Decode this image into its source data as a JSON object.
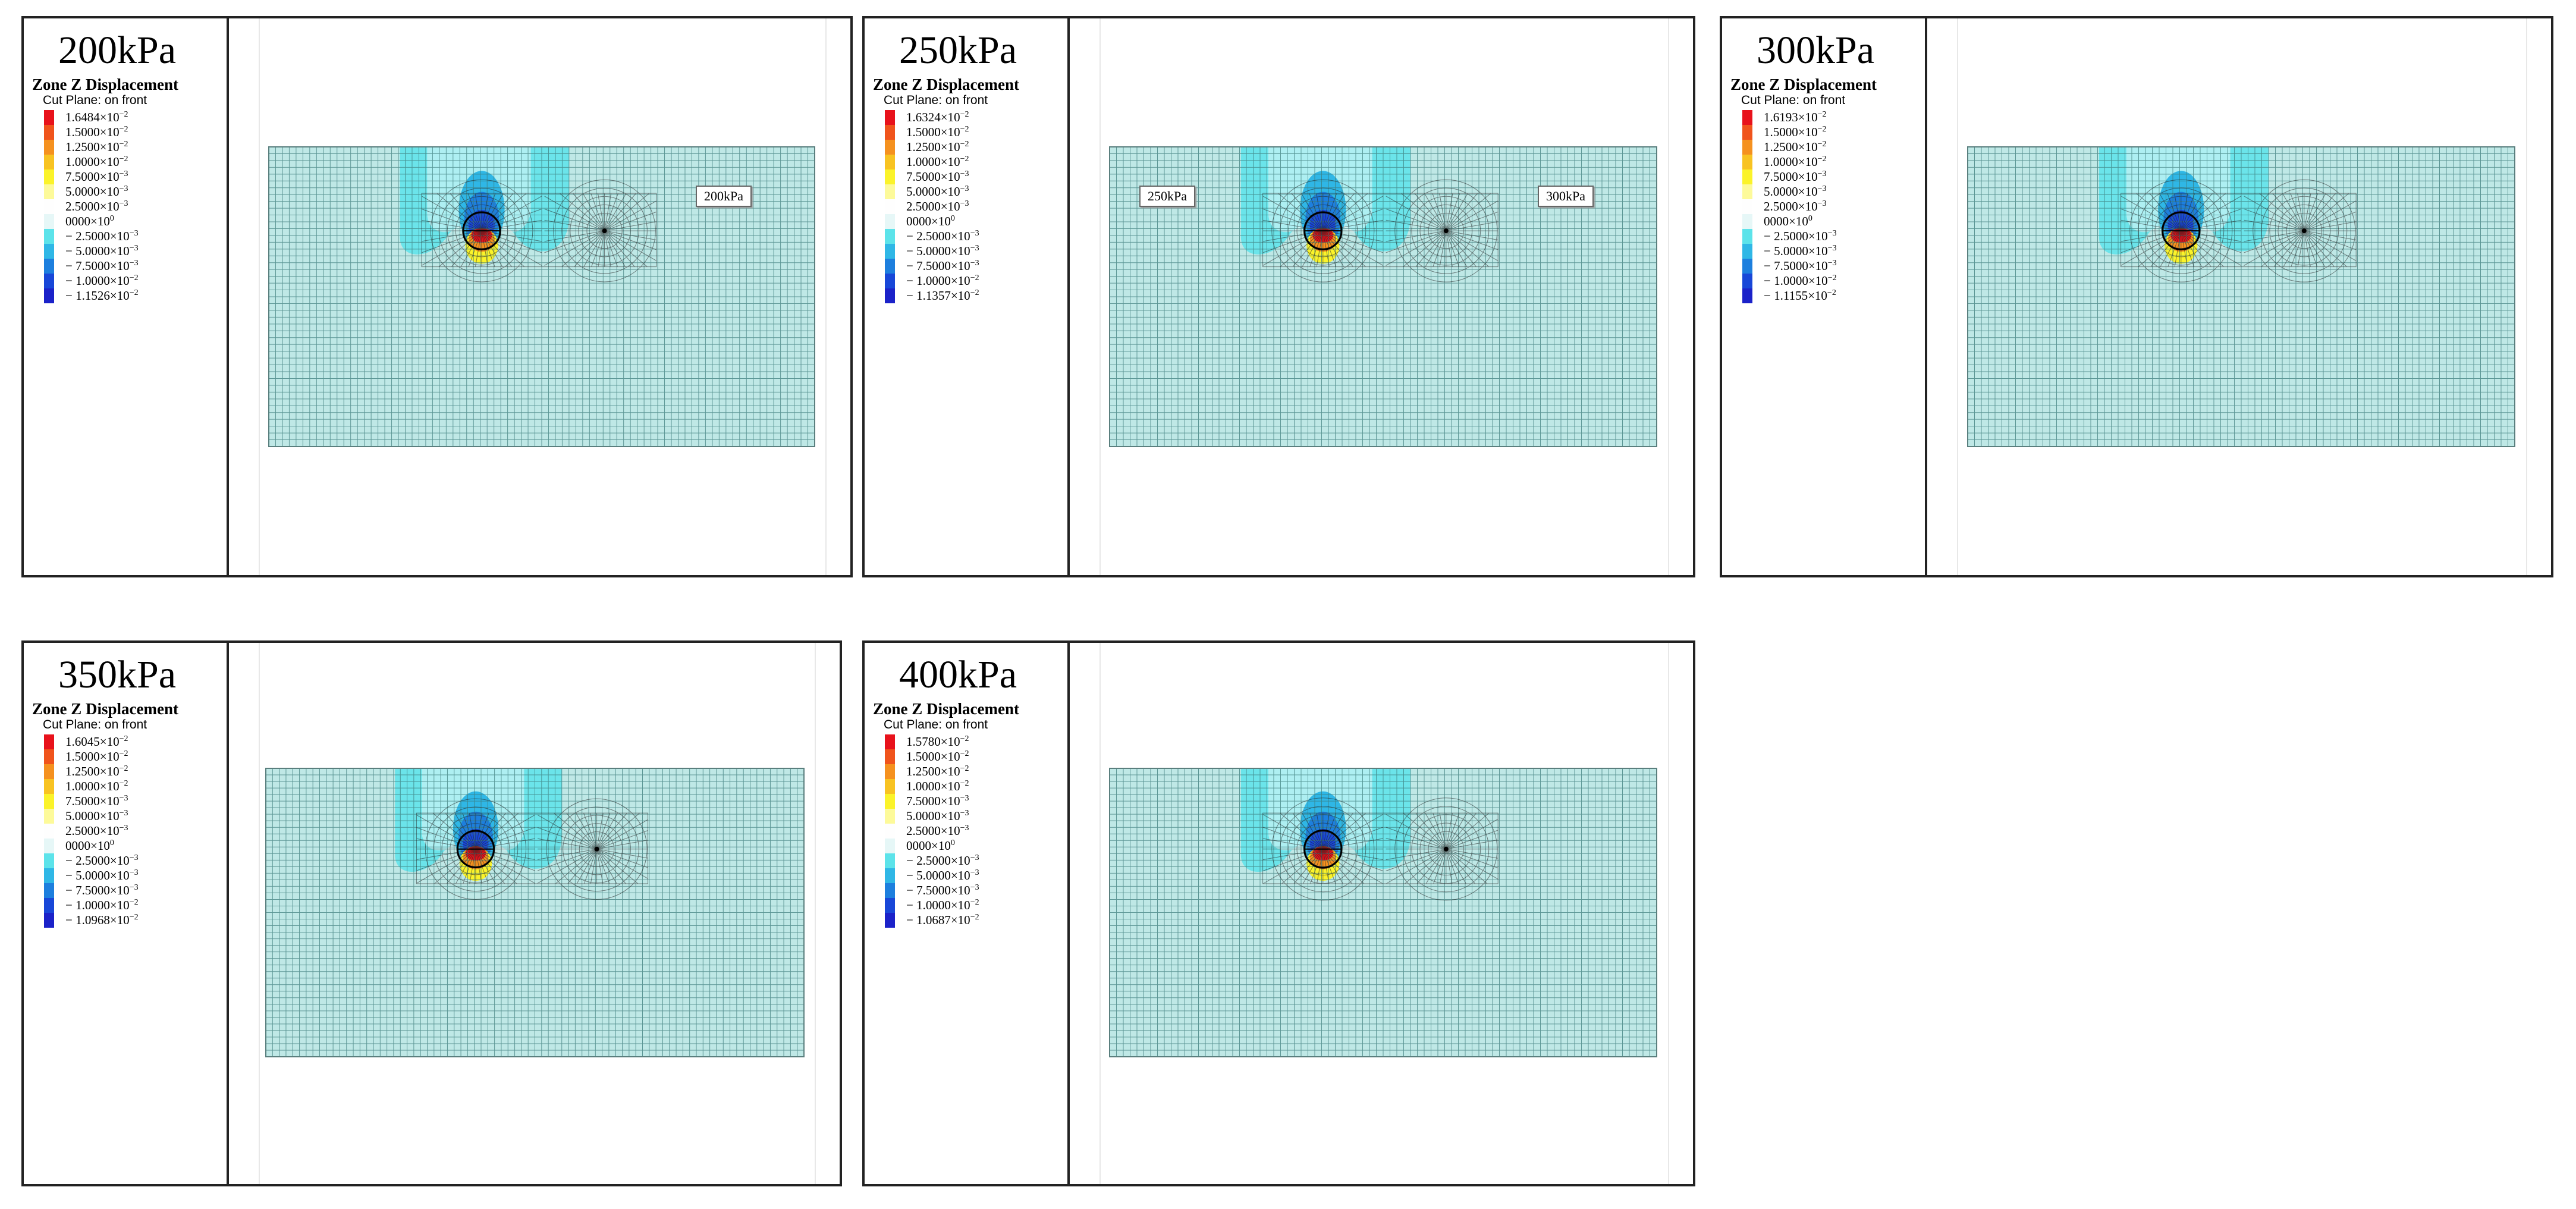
{
  "colors": {
    "mesh_fill": "#bfe8e6",
    "mesh_line": "#3c7b7a",
    "dark_mesh": "#222222",
    "scale": [
      "#e8121b",
      "#f0541c",
      "#f5911f",
      "#f8c322",
      "#fbf32a",
      "#fdfa9a",
      "#fefefe",
      "#e6f7f7",
      "#5ce3ea",
      "#2fb7e6",
      "#1d7fde",
      "#1847d8",
      "#1b22c9"
    ]
  },
  "panels": [
    {
      "title": "200kPa",
      "legend": {
        "title": "Zone Z Displacement",
        "subtitle": "Cut Plane: on front",
        "items": [
          {
            "mant": "1.6484",
            "exp": "−2"
          },
          {
            "mant": "1.5000",
            "exp": "−2"
          },
          {
            "mant": "1.2500",
            "exp": "−2"
          },
          {
            "mant": "1.0000",
            "exp": "−2"
          },
          {
            "mant": "7.5000",
            "exp": "−3"
          },
          {
            "mant": "5.0000",
            "exp": "−3"
          },
          {
            "mant": "2.5000",
            "exp": "−3"
          },
          {
            "mant": "0000",
            "exp": "0"
          },
          {
            "mant": "− 2.5000",
            "exp": "−3"
          },
          {
            "mant": "− 5.0000",
            "exp": "−3"
          },
          {
            "mant": "− 7.5000",
            "exp": "−3"
          },
          {
            "mant": "− 1.0000",
            "exp": "−2"
          },
          {
            "mant": "− 1.1526",
            "exp": "−2"
          }
        ]
      },
      "tags": [
        {
          "text": "200kPa",
          "pos": "right"
        }
      ]
    },
    {
      "title": "250kPa",
      "legend": {
        "title": "Zone Z Displacement",
        "subtitle": "Cut Plane: on front",
        "items": [
          {
            "mant": "1.6324",
            "exp": "−2"
          },
          {
            "mant": "1.5000",
            "exp": "−2"
          },
          {
            "mant": "1.2500",
            "exp": "−2"
          },
          {
            "mant": "1.0000",
            "exp": "−2"
          },
          {
            "mant": "7.5000",
            "exp": "−3"
          },
          {
            "mant": "5.0000",
            "exp": "−3"
          },
          {
            "mant": "2.5000",
            "exp": "−3"
          },
          {
            "mant": "0000",
            "exp": "0"
          },
          {
            "mant": "− 2.5000",
            "exp": "−3"
          },
          {
            "mant": "− 5.0000",
            "exp": "−3"
          },
          {
            "mant": "− 7.5000",
            "exp": "−3"
          },
          {
            "mant": "− 1.0000",
            "exp": "−2"
          },
          {
            "mant": "− 1.1357",
            "exp": "−2"
          }
        ]
      },
      "tags": [
        {
          "text": "250kPa",
          "pos": "left"
        },
        {
          "text": "300kPa",
          "pos": "right"
        }
      ]
    },
    {
      "title": "300kPa",
      "legend": {
        "title": "Zone Z Displacement",
        "subtitle": "Cut Plane: on front",
        "items": [
          {
            "mant": "1.6193",
            "exp": "−2"
          },
          {
            "mant": "1.5000",
            "exp": "−2"
          },
          {
            "mant": "1.2500",
            "exp": "−2"
          },
          {
            "mant": "1.0000",
            "exp": "−2"
          },
          {
            "mant": "7.5000",
            "exp": "−3"
          },
          {
            "mant": "5.0000",
            "exp": "−3"
          },
          {
            "mant": "2.5000",
            "exp": "−3"
          },
          {
            "mant": "0000",
            "exp": "0"
          },
          {
            "mant": "− 2.5000",
            "exp": "−3"
          },
          {
            "mant": "− 5.0000",
            "exp": "−3"
          },
          {
            "mant": "− 7.5000",
            "exp": "−3"
          },
          {
            "mant": "− 1.0000",
            "exp": "−2"
          },
          {
            "mant": "− 1.1155",
            "exp": "−2"
          }
        ]
      },
      "tags": []
    },
    {
      "title": "350kPa",
      "legend": {
        "title": "Zone Z Displacement",
        "subtitle": "Cut Plane: on front",
        "items": [
          {
            "mant": "1.6045",
            "exp": "−2"
          },
          {
            "mant": "1.5000",
            "exp": "−2"
          },
          {
            "mant": "1.2500",
            "exp": "−2"
          },
          {
            "mant": "1.0000",
            "exp": "−2"
          },
          {
            "mant": "7.5000",
            "exp": "−3"
          },
          {
            "mant": "5.0000",
            "exp": "−3"
          },
          {
            "mant": "2.5000",
            "exp": "−3"
          },
          {
            "mant": "0000",
            "exp": "0"
          },
          {
            "mant": "− 2.5000",
            "exp": "−3"
          },
          {
            "mant": "− 5.0000",
            "exp": "−3"
          },
          {
            "mant": "− 7.5000",
            "exp": "−3"
          },
          {
            "mant": "− 1.0000",
            "exp": "−2"
          },
          {
            "mant": "− 1.0968",
            "exp": "−2"
          }
        ]
      },
      "tags": []
    },
    {
      "title": "400kPa",
      "legend": {
        "title": "Zone Z Displacement",
        "subtitle": "Cut Plane: on front",
        "items": [
          {
            "mant": "1.5780",
            "exp": "−2"
          },
          {
            "mant": "1.5000",
            "exp": "−2"
          },
          {
            "mant": "1.2500",
            "exp": "−2"
          },
          {
            "mant": "1.0000",
            "exp": "−2"
          },
          {
            "mant": "7.5000",
            "exp": "−3"
          },
          {
            "mant": "5.0000",
            "exp": "−3"
          },
          {
            "mant": "2.5000",
            "exp": "−3"
          },
          {
            "mant": "0000",
            "exp": "0"
          },
          {
            "mant": "− 2.5000",
            "exp": "−3"
          },
          {
            "mant": "− 5.0000",
            "exp": "−3"
          },
          {
            "mant": "− 7.5000",
            "exp": "−3"
          },
          {
            "mant": "− 1.0000",
            "exp": "−2"
          },
          {
            "mant": "− 1.0687",
            "exp": "−2"
          }
        ]
      },
      "tags": []
    }
  ]
}
